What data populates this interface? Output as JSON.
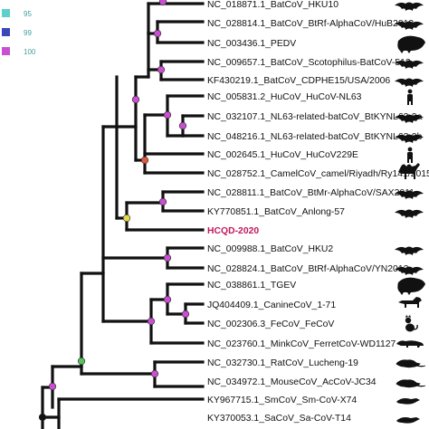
{
  "colors": {
    "branch": "#111111",
    "bootstrap_95": "#5ecfc9",
    "bootstrap_99": "#3b47b8",
    "bootstrap_100": "#c84fcf",
    "highlight": "#c2185b"
  },
  "legend": {
    "items": [
      {
        "label": "95",
        "color": "#5ecfc9"
      },
      {
        "label": "99",
        "color": "#3b47b8"
      },
      {
        "label": "100",
        "color": "#c84fcf"
      }
    ]
  },
  "leaves": [
    {
      "label": "NC_018871.1_BatCoV_HKU10",
      "host": "bat-icon"
    },
    {
      "label": "NC_028814.1_BatCoV_BtRf-AlphaCoV/HuB2013",
      "host": "bat-icon"
    },
    {
      "label": "NC_003436.1_PEDV",
      "host": "pig-icon"
    },
    {
      "label": "NC_009657.1_BatCoV_Scotophilus-BatCoV-512",
      "host": "bat-icon"
    },
    {
      "label": "KF430219.1_BatCoV_CDPHE15/USA/2006",
      "host": "bat-icon"
    },
    {
      "label": "NC_005831.2_HuCoV_HuCoV-NL63",
      "host": "human-icon"
    },
    {
      "label": "NC_032107.1_NL63-related-batCoV_BtKYNL63-9a",
      "host": "bat-icon"
    },
    {
      "label": "NC_048216.1_NL63-related-batCoV_BtKYNL63-9b",
      "host": "bat-icon"
    },
    {
      "label": "NC_002645.1_HuCoV_HuCoV229E",
      "host": "human-icon"
    },
    {
      "label": "NC_028752.1_CamelCoV_camel/Riyadh/Ry141/2015",
      "host": "camel-icon"
    },
    {
      "label": "NC_028811.1_BatCoV_BtMr-AlphaCoV/SAX2011",
      "host": "bat-icon"
    },
    {
      "label": "KY770851.1_BatCoV_Anlong-57",
      "host": "bat-icon"
    },
    {
      "label": "HCQD-2020",
      "host": "",
      "highlight": true
    },
    {
      "label": "NC_009988.1_BatCoV_HKU2",
      "host": "bat-icon"
    },
    {
      "label": "NC_028824.1_BatCoV_BtRf-AlphaCoV/YN2012",
      "host": "bat-icon"
    },
    {
      "label": "NC_038861.1_TGEV",
      "host": "pig-icon"
    },
    {
      "label": "JQ404409.1_CanineCoV_1-71",
      "host": "dog-icon"
    },
    {
      "label": "NC_002306.3_FeCoV_FeCoV",
      "host": "cat-icon"
    },
    {
      "label": "NC_023760.1_MinkCoV_FerretCoV-WD1127",
      "host": "ferret-icon"
    },
    {
      "label": "NC_032730.1_RatCoV_Lucheng-19",
      "host": "rat-icon"
    },
    {
      "label": "NC_034972.1_MouseCoV_AcCoV-JC34",
      "host": "mouse-icon"
    },
    {
      "label": "KY967715.1_SmCoV_Sm-CoV-X74",
      "host": "shrew-icon"
    },
    {
      "label": "KY370053.1_SaCoV_Sa-CoV-T14",
      "host": "shrew-icon"
    }
  ]
}
